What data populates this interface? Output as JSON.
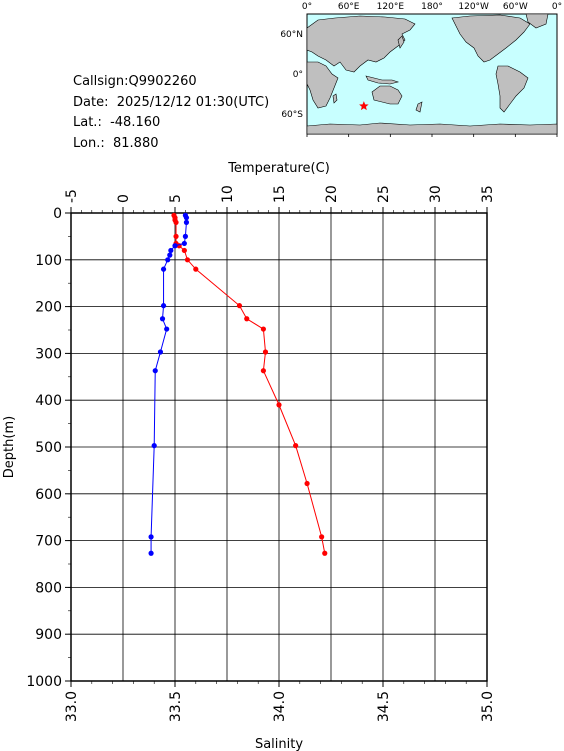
{
  "info": {
    "callsign_label": "Callsign:",
    "callsign": "Q9902260",
    "date_label": "Date:",
    "date": "2025/12/12 01:30(UTC)",
    "lat_label": "Lat.:",
    "lat": "-48.160",
    "lon_label": "Lon.:",
    "lon": "81.880"
  },
  "map": {
    "lon_labels": [
      "0°",
      "60°E",
      "120°E",
      "180°",
      "120°W",
      "60°W",
      "0°"
    ],
    "lat_labels": [
      "60°N",
      "0°",
      "60°S"
    ],
    "ocean_color": "#c8ffff",
    "land_color": "#bfbfbf",
    "marker_color": "#ff0000",
    "marker": {
      "lon": 81.88,
      "lat": -48.16
    }
  },
  "chart_data": {
    "type": "line",
    "title": "",
    "xlabel_top": "Temperature(C)",
    "xlabel_bottom": "Salinity",
    "ylabel": "Depth(m)",
    "temp_range": [
      -5,
      35
    ],
    "sal_range": [
      33.0,
      35.0
    ],
    "depth_range": [
      0,
      1000
    ],
    "temp_ticks": [
      "-5",
      "0",
      "5",
      "10",
      "15",
      "20",
      "25",
      "30",
      "35"
    ],
    "sal_ticks": [
      "33.0",
      "33.5",
      "34.0",
      "34.5",
      "35.0"
    ],
    "depth_ticks": [
      "0",
      "100",
      "200",
      "300",
      "400",
      "500",
      "600",
      "700",
      "800",
      "900",
      "1000"
    ],
    "grid": true,
    "series": [
      {
        "axis": "temperature",
        "color": "#ff0000",
        "points": [
          [
            4.9,
            5
          ],
          [
            5.0,
            10
          ],
          [
            5.0,
            15
          ],
          [
            5.1,
            20
          ],
          [
            5.1,
            50
          ],
          [
            5.1,
            65
          ],
          [
            5.4,
            70
          ],
          [
            5.9,
            80
          ],
          [
            6.2,
            100
          ],
          [
            7.0,
            120
          ],
          [
            11.2,
            198
          ],
          [
            11.9,
            226
          ],
          [
            13.5,
            248
          ],
          [
            13.7,
            297
          ],
          [
            13.5,
            337
          ],
          [
            15.0,
            410
          ],
          [
            16.6,
            497
          ],
          [
            17.7,
            578
          ],
          [
            19.1,
            692
          ],
          [
            19.4,
            727
          ]
        ]
      },
      {
        "axis": "salinity",
        "color": "#0000ff",
        "points": [
          [
            33.55,
            5
          ],
          [
            33.555,
            10
          ],
          [
            33.555,
            20
          ],
          [
            33.55,
            50
          ],
          [
            33.545,
            65
          ],
          [
            33.5,
            70
          ],
          [
            33.48,
            80
          ],
          [
            33.475,
            90
          ],
          [
            33.465,
            100
          ],
          [
            33.445,
            120
          ],
          [
            33.445,
            198
          ],
          [
            33.44,
            226
          ],
          [
            33.46,
            248
          ],
          [
            33.43,
            297
          ],
          [
            33.405,
            337
          ],
          [
            33.4,
            497
          ],
          [
            33.385,
            692
          ],
          [
            33.385,
            727
          ]
        ]
      }
    ]
  }
}
